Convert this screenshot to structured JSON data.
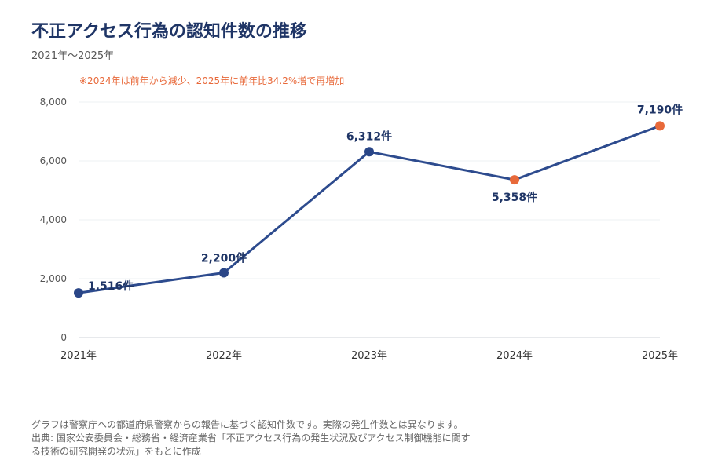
{
  "title": "不正アクセス行為の認知件数の推移",
  "subtitle": "2021年〜2025年",
  "note": "※2024年は前年から減少、2025年に前年比34.2%増で再増加",
  "footer": {
    "line1": "グラフは警察庁への都道府県警察からの報告に基づく認知件数です。実際の発生件数とは異なります。",
    "line2": "出典: 国家公安委員会・総務省・経済産業省「不正アクセス行為の発生状況及びアクセス制御機能に関す",
    "line3": "る技術の研究開発の状況」をもとに作成"
  },
  "colors": {
    "line": "#2d4b8e",
    "marker": "#2a4687",
    "highlight": "#e8693a",
    "label": "#1f3566"
  },
  "chart_data": {
    "type": "line",
    "categories": [
      "2021年",
      "2022年",
      "2023年",
      "2024年",
      "2025年"
    ],
    "values": [
      1516,
      2200,
      6312,
      5358,
      7190
    ],
    "data_labels": [
      "1,516件",
      "2,200件",
      "6,312件",
      "5,358件",
      "7,190件"
    ],
    "highlight": [
      false,
      false,
      false,
      true,
      true
    ],
    "ylim": [
      0,
      8000
    ],
    "yticks": [
      0,
      2000,
      4000,
      6000,
      8000
    ],
    "ytick_labels": [
      "0",
      "2,000",
      "4,000",
      "6,000",
      "8,000"
    ],
    "grid": true
  }
}
